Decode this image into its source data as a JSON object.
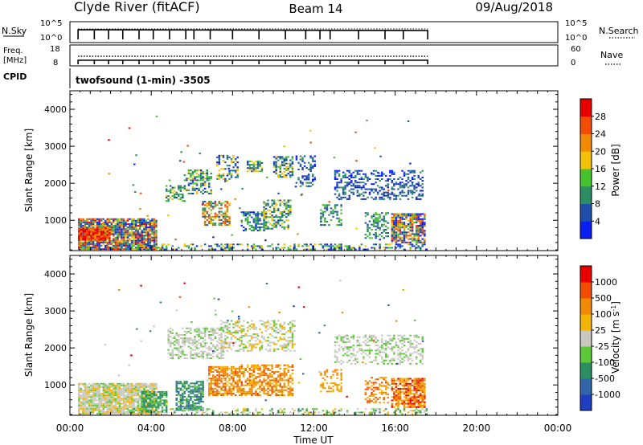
{
  "header": {
    "station": "Clyde River (fitACF)",
    "beam": "Beam 14",
    "date": "09/Aug/2018"
  },
  "side_labels": {
    "nsky": "N.Sky",
    "freq_line1": "Freq.",
    "freq_line2": "[MHz]",
    "cpid": "CPID",
    "nsearch": "N.Search",
    "nave": "Nave",
    "nsky_ticks": [
      "10^5",
      "10^0"
    ],
    "nsearch_ticks": [
      "10^5",
      "10^0"
    ],
    "freq_ticks": [
      "18",
      "8"
    ],
    "nave_ticks": [
      "60",
      "0"
    ]
  },
  "cpid_text": "twofsound (1-min) -3505",
  "axes": {
    "ylabel": "Slant Range [km]",
    "xlabel": "Time UT",
    "yticks": [
      "1000",
      "2000",
      "3000",
      "4000"
    ],
    "xticks": [
      "00:00",
      "04:00",
      "08:00",
      "12:00",
      "16:00",
      "20:00",
      "00:00"
    ]
  },
  "colorbars": {
    "power": {
      "label": "Power [dB]",
      "ticks": [
        "4",
        "8",
        "12",
        "16",
        "20",
        "24",
        "28"
      ],
      "colors": [
        "#0a1ff2",
        "#1e4ea8",
        "#2c8e62",
        "#46c22c",
        "#f2c200",
        "#f28a00",
        "#f24d00",
        "#e80000"
      ]
    },
    "velocity": {
      "label": "Velocity [m s",
      "label_sup": "-1",
      "label_close": "]",
      "ticks": [
        "1000",
        "500",
        "100",
        "25",
        "-25",
        "-100",
        "-500",
        "-1000"
      ],
      "colors": [
        "#1e3fbf",
        "#3166a8",
        "#2c8e62",
        "#5ec83a",
        "#c8c8c0",
        "#f2b400",
        "#f28a00",
        "#f24d00",
        "#e80000"
      ]
    }
  },
  "chart_data": {
    "type": "heatmap",
    "x_unit": "hours UT",
    "x_range": [
      0,
      24
    ],
    "y_unit": "km",
    "y_range": [
      180,
      4500
    ],
    "data_end_hour": 17.6,
    "power_clusters": [
      {
        "x": [
          0.4,
          4.3
        ],
        "y": [
          200,
          1050
        ],
        "density": 0.9,
        "colors": [
          0,
          1,
          1,
          2,
          3,
          4,
          5,
          6,
          7
        ]
      },
      {
        "x": [
          0.4,
          2.0
        ],
        "y": [
          450,
          800
        ],
        "density": 0.9,
        "colors": [
          5,
          6,
          7,
          7
        ]
      },
      {
        "x": [
          4.7,
          5.6
        ],
        "y": [
          1500,
          1950
        ],
        "density": 0.5,
        "colors": [
          1,
          2,
          3,
          4
        ]
      },
      {
        "x": [
          5.6,
          6.9
        ],
        "y": [
          1700,
          2350
        ],
        "density": 0.5,
        "colors": [
          0,
          1,
          2,
          3,
          4
        ]
      },
      {
        "x": [
          6.5,
          7.8
        ],
        "y": [
          850,
          1500
        ],
        "density": 0.6,
        "colors": [
          1,
          2,
          3,
          4,
          5,
          6
        ]
      },
      {
        "x": [
          7.2,
          8.2
        ],
        "y": [
          2050,
          2750
        ],
        "density": 0.4,
        "colors": [
          0,
          1,
          2,
          4
        ]
      },
      {
        "x": [
          8.4,
          9.5
        ],
        "y": [
          700,
          1200
        ],
        "density": 0.6,
        "colors": [
          0,
          1,
          2,
          3
        ]
      },
      {
        "x": [
          8.7,
          9.4
        ],
        "y": [
          2300,
          2600
        ],
        "density": 0.7,
        "colors": [
          1,
          2,
          3,
          4
        ]
      },
      {
        "x": [
          9.5,
          10.8
        ],
        "y": [
          750,
          1550
        ],
        "density": 0.5,
        "colors": [
          1,
          2,
          3,
          4
        ]
      },
      {
        "x": [
          10.0,
          10.9
        ],
        "y": [
          2150,
          2700
        ],
        "density": 0.6,
        "colors": [
          0,
          1,
          2,
          3,
          4
        ]
      },
      {
        "x": [
          11.1,
          12.0
        ],
        "y": [
          1900,
          2750
        ],
        "density": 0.3,
        "colors": [
          0,
          1,
          2
        ]
      },
      {
        "x": [
          12.3,
          13.3
        ],
        "y": [
          850,
          1400
        ],
        "density": 0.4,
        "colors": [
          1,
          2,
          3
        ]
      },
      {
        "x": [
          13.0,
          17.4
        ],
        "y": [
          1550,
          2350
        ],
        "density": 0.4,
        "colors": [
          0,
          1,
          2
        ]
      },
      {
        "x": [
          14.5,
          15.6
        ],
        "y": [
          500,
          1200
        ],
        "density": 0.4,
        "colors": [
          1,
          2,
          3
        ]
      },
      {
        "x": [
          15.8,
          17.5
        ],
        "y": [
          380,
          1150
        ],
        "density": 0.8,
        "colors": [
          0,
          1,
          3,
          4,
          5,
          6
        ]
      },
      {
        "x": [
          3.0,
          17.5
        ],
        "y": [
          190,
          330
        ],
        "density": 0.35,
        "colors": [
          0,
          1,
          2,
          3,
          4
        ]
      }
    ],
    "velocity_clusters": [
      {
        "x": [
          0.4,
          4.3
        ],
        "y": [
          200,
          1050
        ],
        "density": 0.9,
        "colors": [
          4,
          4,
          4,
          3,
          5
        ]
      },
      {
        "x": [
          3.5,
          4.7
        ],
        "y": [
          250,
          800
        ],
        "density": 0.7,
        "colors": [
          2,
          3,
          2
        ]
      },
      {
        "x": [
          5.2,
          6.5
        ],
        "y": [
          300,
          1100
        ],
        "density": 0.7,
        "colors": [
          2,
          3,
          2,
          1
        ]
      },
      {
        "x": [
          4.8,
          7.5
        ],
        "y": [
          1700,
          2550
        ],
        "density": 0.5,
        "colors": [
          4,
          4,
          4,
          3
        ]
      },
      {
        "x": [
          6.8,
          8.3
        ],
        "y": [
          700,
          1500
        ],
        "density": 0.7,
        "colors": [
          6,
          6,
          7,
          5
        ]
      },
      {
        "x": [
          8.4,
          10.9
        ],
        "y": [
          700,
          1550
        ],
        "density": 0.6,
        "colors": [
          6,
          6,
          5,
          7
        ]
      },
      {
        "x": [
          7.4,
          11.0
        ],
        "y": [
          1900,
          2750
        ],
        "density": 0.4,
        "colors": [
          4,
          4,
          5,
          3
        ]
      },
      {
        "x": [
          12.3,
          13.3
        ],
        "y": [
          800,
          1400
        ],
        "density": 0.4,
        "colors": [
          6,
          5
        ]
      },
      {
        "x": [
          13.0,
          17.4
        ],
        "y": [
          1550,
          2350
        ],
        "density": 0.4,
        "colors": [
          4,
          4,
          3
        ]
      },
      {
        "x": [
          14.5,
          15.6
        ],
        "y": [
          500,
          1200
        ],
        "density": 0.4,
        "colors": [
          6,
          5,
          7
        ]
      },
      {
        "x": [
          15.8,
          17.5
        ],
        "y": [
          380,
          1150
        ],
        "density": 0.8,
        "colors": [
          6,
          7,
          8,
          5
        ]
      },
      {
        "x": [
          3.0,
          17.5
        ],
        "y": [
          190,
          330
        ],
        "density": 0.35,
        "colors": [
          3,
          4,
          5,
          2
        ]
      }
    ]
  }
}
